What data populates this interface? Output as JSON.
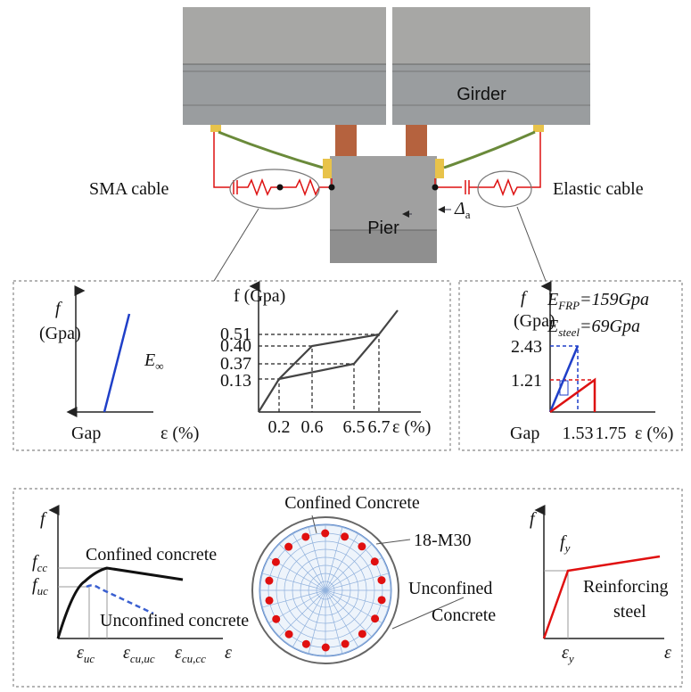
{
  "top_diagram": {
    "girder": "Girder",
    "pier": "Pier",
    "displacement": {
      "symbol": "Δ",
      "subscript": "a"
    },
    "sma_cable": "SMA cable",
    "elastic_cable": "Elastic cable"
  },
  "gap_model": {
    "y_label": "f",
    "y_unit": "(Gpa)",
    "stiffness": {
      "symbol": "E",
      "subscript": "∞"
    },
    "x_origin": "Gap",
    "x_label": "ε (%)"
  },
  "sma_model": {
    "y_label": "f (Gpa)",
    "y_ticks": [
      "0.51",
      "0.40",
      "0.37",
      "0.13"
    ],
    "x_ticks": [
      "0.2",
      "0.6",
      "6.5",
      "6.7"
    ],
    "x_label": "ε (%)"
  },
  "elastic_model": {
    "y_label": "f",
    "y_unit": "(Gpa)",
    "frp": {
      "symbol": "E",
      "subscript": "FRP",
      "rest": "=159Gpa"
    },
    "steel": {
      "symbol": "E",
      "subscript": "steel",
      "rest": "=69Gpa"
    },
    "y_ticks": [
      "2.43",
      "1.21"
    ],
    "x_origin": "Gap",
    "x_ticks": [
      "1.53",
      "1.75"
    ],
    "x_label": "ε (%)"
  },
  "concrete_model": {
    "y_label": "f",
    "f_cc": {
      "symbol": "f",
      "subscript": "cc"
    },
    "f_uc": {
      "symbol": "f",
      "subscript": "uc"
    },
    "confined": "Confined concrete",
    "unconfined": "Unconfined concrete",
    "x_ticks": [
      {
        "symbol": "ε",
        "subscript": "uc"
      },
      {
        "symbol": "ε",
        "subscript": "cu,uc"
      },
      {
        "symbol": "ε",
        "subscript": "cu,cc"
      }
    ],
    "x_label": "ε"
  },
  "section": {
    "confined": "Confined Concrete",
    "rebar": "18-M30",
    "unconfined": [
      "Unconfined",
      "Concrete"
    ]
  },
  "steel_model": {
    "y_label": "f",
    "f_y": {
      "symbol": "f",
      "subscript": "y"
    },
    "label": [
      "Reinforcing",
      "steel"
    ],
    "x_tick": {
      "symbol": "ε",
      "subscript": "y"
    },
    "x_label": "ε"
  }
}
